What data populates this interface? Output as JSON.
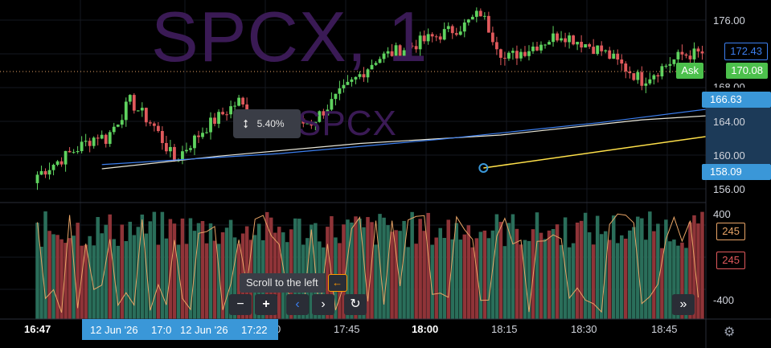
{
  "symbol_watermark": "SPCX, 1",
  "secondary_watermark": "SPCX",
  "price_axis": {
    "ticks": [
      "176.00",
      "164.00",
      "160.00",
      "156.00"
    ],
    "partial_tick": "168.00",
    "badges": {
      "ma_fast": "172.43",
      "ask_label": "Ask",
      "ask_price": "170.08",
      "ma_slow": "166.63",
      "crosshair_low": "158.09"
    }
  },
  "volume_axis": {
    "ticks": [
      "400",
      "-400"
    ],
    "badges": {
      "oscillator": "245",
      "volume": "245"
    }
  },
  "time_axis": {
    "ticks": [
      "16:47",
      "17:30",
      "17:45",
      "18:00",
      "18:15",
      "18:30",
      "18:45"
    ],
    "partial_tick": "0",
    "range_start": "12 Jun '26",
    "range_start_time": "17:0",
    "range_end": "12 Jun '26",
    "range_end_time": "17:22"
  },
  "measure_tooltip": {
    "value": "5.40%",
    "icon": "vertical-measure-icon"
  },
  "scroll_hint": {
    "text": "Scroll to the left",
    "key": "←"
  },
  "nav_buttons": {
    "zoom_out": "−",
    "zoom_in": "+",
    "prev": "‹",
    "next": "›",
    "reset": "↻",
    "scroll_end": "»"
  },
  "colors": {
    "up": "#5fd35f",
    "down": "#e0595c",
    "vol_up": "#2a6e5a",
    "vol_down": "#8f3438",
    "ma_fast": "#3c7ff0",
    "ma_slow": "#e8e6d8",
    "oscillator": "#e8a466",
    "trendline": "#ffe14a",
    "accent_blue": "#3a97d8",
    "ask_green": "#4cc04c"
  },
  "chart_data": {
    "type": "candlestick",
    "ylim": [
      154,
      178
    ],
    "ohlc_segments": [
      [
        16.0,
        157.0,
        162.0
      ],
      [
        2.0,
        162.0,
        161.5
      ],
      [
        6.0,
        161.5,
        166.0
      ],
      [
        6.0,
        166.0,
        163.0
      ],
      [
        5.0,
        163.0,
        159.0
      ],
      [
        8.0,
        159.0,
        163.0
      ],
      [
        8.0,
        163.0,
        166.0
      ],
      [
        4.0,
        166.0,
        163.5
      ],
      [
        4.0,
        163.5,
        163.2
      ],
      [
        10.0,
        163.2,
        163.5
      ],
      [
        16.0,
        163.5,
        171.0
      ],
      [
        22.0,
        171.0,
        175.0
      ],
      [
        4.0,
        175.0,
        176.5
      ],
      [
        6.0,
        176.5,
        171.0
      ],
      [
        14.0,
        171.0,
        174.0
      ],
      [
        10.0,
        174.0,
        172.0
      ],
      [
        10.0,
        172.0,
        168.5
      ],
      [
        10.0,
        168.5,
        171.5
      ],
      [
        14.0,
        171.5,
        172.0
      ],
      [
        4.0,
        172.0,
        171.0
      ],
      [
        10.0,
        171.0,
        174.0
      ]
    ],
    "ma_fast": [
      [
        16,
        158.5
      ],
      [
        60,
        159.8
      ],
      [
        100,
        161.5
      ],
      [
        140,
        163.5
      ],
      [
        190,
        166.5
      ],
      [
        250,
        170.0
      ],
      [
        300,
        171.8
      ],
      [
        350,
        172.3
      ],
      [
        378,
        172.4
      ]
    ],
    "ma_slow": [
      [
        16,
        158.0
      ],
      [
        45,
        159.5
      ],
      [
        80,
        161.0
      ],
      [
        115,
        162.0
      ],
      [
        150,
        163.8
      ],
      [
        190,
        165.0
      ],
      [
        240,
        165.8
      ],
      [
        300,
        166.3
      ],
      [
        378,
        166.6
      ]
    ],
    "trendline": {
      "from": [
        27,
        158.1
      ],
      "to": [
        60,
        166.6
      ],
      "change": "5.40%"
    },
    "volume_ylim": [
      -450,
      450
    ],
    "volume_segments_down_ratio": 0.35,
    "oscillator_range": [
      -400,
      400
    ]
  }
}
